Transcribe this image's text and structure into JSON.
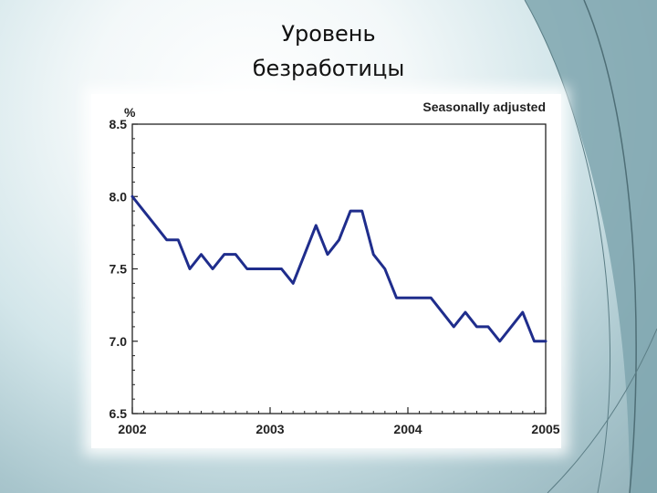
{
  "slide": {
    "title_line1": "Уровень",
    "title_line2": "безработицы"
  },
  "colors": {
    "line": "#1f2d8c",
    "axis": "#222222",
    "background_teal": "#7fa6af"
  },
  "chart_data": {
    "type": "line",
    "title": "",
    "ylabel": "%",
    "note": "Seasonally adjusted",
    "xlim": [
      2002,
      2005
    ],
    "ylim": [
      6.5,
      8.5
    ],
    "yticks": [
      "6.5",
      "7.0",
      "7.5",
      "8.0",
      "8.5"
    ],
    "xticks": [
      "2002",
      "2003",
      "2004",
      "2005"
    ],
    "grid": false,
    "series": [
      {
        "values": [
          {
            "x": 2002.0,
            "y": 8.0
          },
          {
            "x": 2002.083,
            "y": 7.9
          },
          {
            "x": 2002.167,
            "y": 7.8
          },
          {
            "x": 2002.25,
            "y": 7.7
          },
          {
            "x": 2002.333,
            "y": 7.7
          },
          {
            "x": 2002.417,
            "y": 7.5
          },
          {
            "x": 2002.5,
            "y": 7.6
          },
          {
            "x": 2002.583,
            "y": 7.5
          },
          {
            "x": 2002.667,
            "y": 7.6
          },
          {
            "x": 2002.75,
            "y": 7.6
          },
          {
            "x": 2002.833,
            "y": 7.5
          },
          {
            "x": 2002.917,
            "y": 7.5
          },
          {
            "x": 2003.0,
            "y": 7.5
          },
          {
            "x": 2003.083,
            "y": 7.5
          },
          {
            "x": 2003.167,
            "y": 7.4
          },
          {
            "x": 2003.25,
            "y": 7.6
          },
          {
            "x": 2003.333,
            "y": 7.8
          },
          {
            "x": 2003.417,
            "y": 7.6
          },
          {
            "x": 2003.5,
            "y": 7.7
          },
          {
            "x": 2003.583,
            "y": 7.9
          },
          {
            "x": 2003.667,
            "y": 7.9
          },
          {
            "x": 2003.75,
            "y": 7.6
          },
          {
            "x": 2003.833,
            "y": 7.5
          },
          {
            "x": 2003.917,
            "y": 7.3
          },
          {
            "x": 2004.0,
            "y": 7.3
          },
          {
            "x": 2004.083,
            "y": 7.3
          },
          {
            "x": 2004.167,
            "y": 7.3
          },
          {
            "x": 2004.25,
            "y": 7.2
          },
          {
            "x": 2004.333,
            "y": 7.1
          },
          {
            "x": 2004.417,
            "y": 7.2
          },
          {
            "x": 2004.5,
            "y": 7.1
          },
          {
            "x": 2004.583,
            "y": 7.1
          },
          {
            "x": 2004.667,
            "y": 7.0
          },
          {
            "x": 2004.75,
            "y": 7.1
          },
          {
            "x": 2004.833,
            "y": 7.2
          },
          {
            "x": 2004.917,
            "y": 7.0
          },
          {
            "x": 2005.0,
            "y": 7.0
          }
        ]
      }
    ]
  }
}
